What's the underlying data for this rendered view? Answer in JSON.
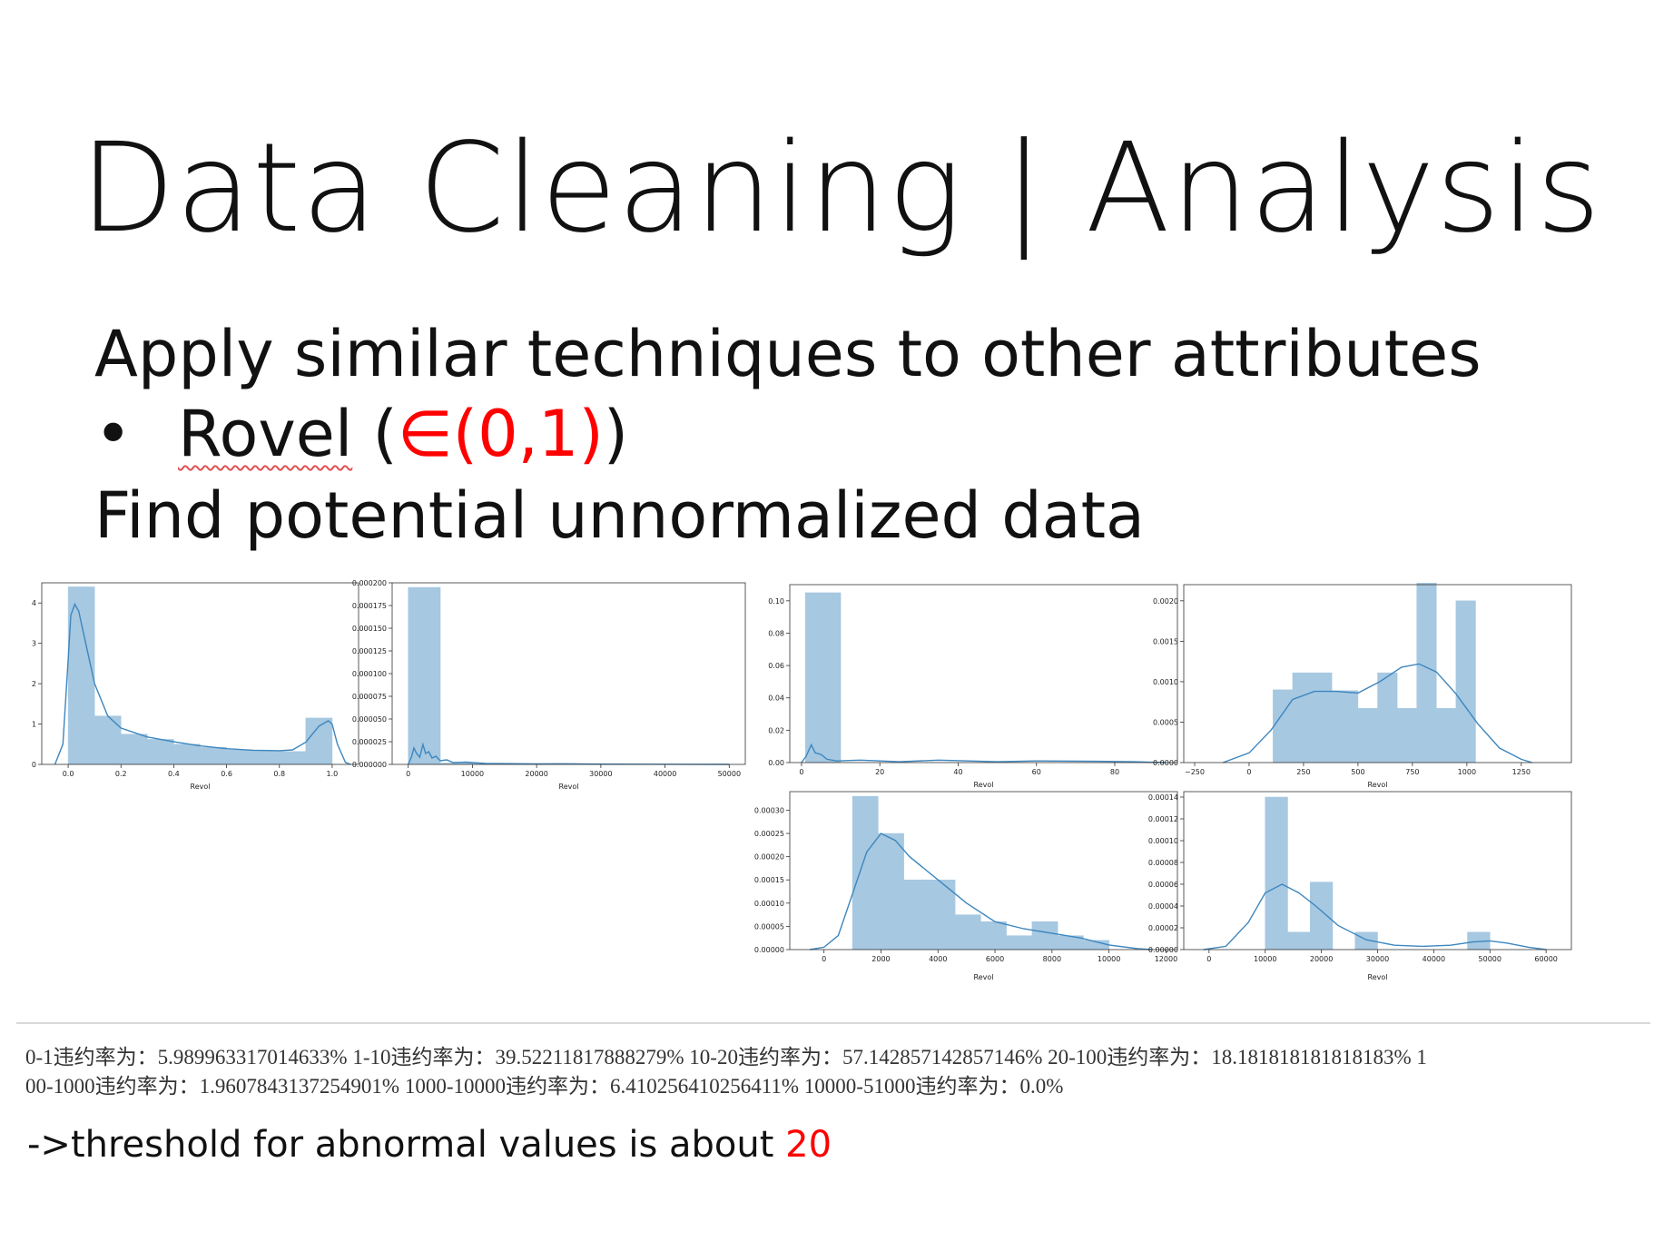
{
  "slide": {
    "title": "Data Cleaning | Analysis",
    "line1": "Apply similar techniques to other attributes",
    "bullet_symbol": "•",
    "bullet_name": "Rovel",
    "bullet_paren_open": " (",
    "bullet_range": "∈(0,1)",
    "bullet_paren_close": ")",
    "line3": "Find potential unnormalized data",
    "stats_line1": "0-1违约率为：5.989963317014633% 1-10违约率为：39.52211817888279% 10-20违约率为：57.142857142857146% 20-100违约率为：18.181818181818183% 1",
    "stats_line2": "00-1000违约率为：1.9607843137254901% 1000-10000违约率为：6.410256410256411% 10000-51000违约率为：0.0%",
    "conclusion_prefix": "->threshold for abnormal values is about ",
    "conclusion_value": "20"
  },
  "colors": {
    "bar_fill": "#a6c8e1",
    "kde_line": "#3d86be",
    "highlight": "#ff0000",
    "axis": "#333333"
  },
  "chart_data": [
    {
      "type": "bar",
      "xlabel": "Revol",
      "xlim": [
        -0.1,
        1.1
      ],
      "ylim": [
        0,
        4.5
      ],
      "xticks": [
        "0.0",
        "0.2",
        "0.4",
        "0.6",
        "0.8",
        "1.0"
      ],
      "yticks": [
        "0",
        "1",
        "2",
        "3",
        "4"
      ],
      "bins": [
        [
          0.0,
          0.1,
          4.4
        ],
        [
          0.1,
          0.2,
          1.2
        ],
        [
          0.2,
          0.3,
          0.75
        ],
        [
          0.3,
          0.4,
          0.62
        ],
        [
          0.4,
          0.5,
          0.5
        ],
        [
          0.5,
          0.6,
          0.42
        ],
        [
          0.6,
          0.7,
          0.36
        ],
        [
          0.7,
          0.8,
          0.33
        ],
        [
          0.8,
          0.9,
          0.32
        ],
        [
          0.9,
          1.0,
          1.15
        ]
      ],
      "kde": [
        [
          -0.05,
          0.0
        ],
        [
          -0.02,
          0.5
        ],
        [
          0.0,
          2.6
        ],
        [
          0.01,
          3.7
        ],
        [
          0.025,
          3.97
        ],
        [
          0.04,
          3.8
        ],
        [
          0.06,
          3.2
        ],
        [
          0.1,
          2.0
        ],
        [
          0.15,
          1.2
        ],
        [
          0.2,
          0.9
        ],
        [
          0.3,
          0.68
        ],
        [
          0.4,
          0.56
        ],
        [
          0.5,
          0.46
        ],
        [
          0.6,
          0.39
        ],
        [
          0.7,
          0.35
        ],
        [
          0.8,
          0.34
        ],
        [
          0.85,
          0.36
        ],
        [
          0.9,
          0.55
        ],
        [
          0.95,
          0.95
        ],
        [
          0.985,
          1.08
        ],
        [
          1.0,
          1.0
        ],
        [
          1.02,
          0.5
        ],
        [
          1.05,
          0.05
        ],
        [
          1.07,
          0.0
        ]
      ]
    },
    {
      "type": "bar",
      "xlabel": "Revol",
      "xlim": [
        -2500,
        52500
      ],
      "ylim": [
        0,
        0.0002
      ],
      "xticks": [
        "0",
        "10000",
        "20000",
        "30000",
        "40000",
        "50000"
      ],
      "yticks": [
        "0.000000",
        "0.000025",
        "0.000050",
        "0.000075",
        "0.000100",
        "0.000125",
        "0.000150",
        "0.000175",
        "0.000200"
      ],
      "bins": [
        [
          0,
          5000,
          0.000195
        ],
        [
          5000,
          10000,
          1.5e-06
        ],
        [
          10000,
          15000,
          8e-07
        ],
        [
          15000,
          20000,
          5e-07
        ],
        [
          20000,
          25000,
          4e-07
        ]
      ],
      "kde": [
        [
          0,
          0.0
        ],
        [
          500,
          8e-06
        ],
        [
          900,
          1.8e-05
        ],
        [
          1300,
          1.2e-05
        ],
        [
          1800,
          8e-06
        ],
        [
          2300,
          2.2e-05
        ],
        [
          2700,
          1.2e-05
        ],
        [
          3200,
          1.4e-05
        ],
        [
          3700,
          7e-06
        ],
        [
          4300,
          9e-06
        ],
        [
          5000,
          4e-06
        ],
        [
          6000,
          5e-06
        ],
        [
          7000,
          2e-06
        ],
        [
          9000,
          2.5e-06
        ],
        [
          12000,
          1e-06
        ],
        [
          16000,
          8e-07
        ],
        [
          20000,
          5e-07
        ],
        [
          24000,
          7e-07
        ],
        [
          30000,
          3e-07
        ],
        [
          50000,
          0.0
        ]
      ]
    },
    {
      "type": "bar",
      "xlabel": "Revol",
      "xlim": [
        -3,
        96
      ],
      "ylim": [
        0,
        0.11
      ],
      "xticks": [
        "0",
        "20",
        "40",
        "60",
        "80"
      ],
      "yticks": [
        "0.00",
        "0.02",
        "0.04",
        "0.06",
        "0.08",
        "0.10"
      ],
      "bins": [
        [
          1,
          10,
          0.105
        ]
      ],
      "kde": [
        [
          0,
          0.0
        ],
        [
          1.2,
          0.004
        ],
        [
          2.5,
          0.011
        ],
        [
          3.5,
          0.006
        ],
        [
          5,
          0.005
        ],
        [
          6.5,
          0.002
        ],
        [
          9,
          0.001
        ],
        [
          15,
          0.0015
        ],
        [
          25,
          0.0005
        ],
        [
          35,
          0.0015
        ],
        [
          50,
          0.0005
        ],
        [
          60,
          0.001
        ],
        [
          75,
          0.0008
        ],
        [
          85,
          0.0005
        ],
        [
          93,
          0.0
        ]
      ]
    },
    {
      "type": "bar",
      "xlabel": "Revol",
      "xlim": [
        -300,
        1480
      ],
      "ylim": [
        0,
        0.0022
      ],
      "xticks": [
        "−250",
        "0",
        "250",
        "500",
        "750",
        "1000",
        "1250"
      ],
      "yticks": [
        "0.0000",
        "0.0005",
        "0.0010",
        "0.0015",
        "0.0020"
      ],
      "bins": [
        [
          110,
          200,
          0.0009
        ],
        [
          200,
          380,
          0.00111
        ],
        [
          380,
          500,
          0.00089
        ],
        [
          500,
          590,
          0.00067
        ],
        [
          590,
          680,
          0.00111
        ],
        [
          680,
          770,
          0.00067
        ],
        [
          770,
          860,
          0.00222
        ],
        [
          860,
          950,
          0.00067
        ],
        [
          950,
          1040,
          0.002
        ]
      ],
      "kde": [
        [
          -120,
          0.0
        ],
        [
          0,
          0.00012
        ],
        [
          100,
          0.0004
        ],
        [
          200,
          0.00078
        ],
        [
          300,
          0.00088
        ],
        [
          400,
          0.00088
        ],
        [
          500,
          0.00086
        ],
        [
          600,
          0.001
        ],
        [
          700,
          0.00118
        ],
        [
          780,
          0.00122
        ],
        [
          860,
          0.00112
        ],
        [
          950,
          0.00085
        ],
        [
          1050,
          0.00048
        ],
        [
          1150,
          0.00018
        ],
        [
          1250,
          4e-05
        ],
        [
          1300,
          0.0
        ]
      ]
    },
    {
      "type": "bar",
      "xlabel": "Revol",
      "xlim": [
        -1200,
        12400
      ],
      "ylim": [
        0,
        0.00034
      ],
      "xticks": [
        "0",
        "2000",
        "4000",
        "6000",
        "8000",
        "10000",
        "12000"
      ],
      "yticks": [
        "0.00000",
        "0.00005",
        "0.00010",
        "0.00015",
        "0.00020",
        "0.00025",
        "0.00030"
      ],
      "bins": [
        [
          1000,
          1900,
          0.00033
        ],
        [
          1900,
          2800,
          0.00025
        ],
        [
          2800,
          3700,
          0.00015
        ],
        [
          3700,
          4600,
          0.00015
        ],
        [
          4600,
          5500,
          7.5e-05
        ],
        [
          5500,
          6400,
          6e-05
        ],
        [
          6400,
          7300,
          3e-05
        ],
        [
          7300,
          8200,
          6e-05
        ],
        [
          8200,
          9100,
          3e-05
        ],
        [
          9100,
          10000,
          2e-05
        ]
      ],
      "kde": [
        [
          -500,
          0.0
        ],
        [
          0,
          5e-06
        ],
        [
          500,
          3e-05
        ],
        [
          1000,
          0.00012
        ],
        [
          1500,
          0.00021
        ],
        [
          2000,
          0.00025
        ],
        [
          2500,
          0.000235
        ],
        [
          3000,
          0.0002
        ],
        [
          4000,
          0.00015
        ],
        [
          5000,
          0.0001
        ],
        [
          6000,
          6e-05
        ],
        [
          7000,
          4.5e-05
        ],
        [
          8000,
          3.5e-05
        ],
        [
          9000,
          2.5e-05
        ],
        [
          10000,
          1e-05
        ],
        [
          11000,
          2e-06
        ],
        [
          11500,
          0.0
        ]
      ]
    },
    {
      "type": "bar",
      "xlabel": "Revol",
      "xlim": [
        -4500,
        64500
      ],
      "ylim": [
        0,
        0.000145
      ],
      "xticks": [
        "0",
        "10000",
        "20000",
        "30000",
        "40000",
        "50000",
        "60000"
      ],
      "yticks": [
        "0.00000",
        "0.00002",
        "0.00004",
        "0.00006",
        "0.00008",
        "0.00010",
        "0.00012",
        "0.00014"
      ],
      "bins": [
        [
          10000,
          14000,
          0.00014
        ],
        [
          14000,
          18000,
          1.6e-05
        ],
        [
          18000,
          22000,
          6.2e-05
        ],
        [
          22000,
          26000,
          0.0
        ],
        [
          26000,
          30000,
          1.6e-05
        ],
        [
          46000,
          50000,
          1.6e-05
        ]
      ],
      "kde": [
        [
          -1000,
          0.0
        ],
        [
          3000,
          3e-06
        ],
        [
          7000,
          2.5e-05
        ],
        [
          10000,
          5.2e-05
        ],
        [
          13000,
          6e-05
        ],
        [
          16000,
          5.2e-05
        ],
        [
          19000,
          4e-05
        ],
        [
          23000,
          2.2e-05
        ],
        [
          28000,
          9e-06
        ],
        [
          33000,
          4e-06
        ],
        [
          38000,
          3e-06
        ],
        [
          43000,
          4e-06
        ],
        [
          47000,
          7e-06
        ],
        [
          50000,
          8e-06
        ],
        [
          53000,
          6e-06
        ],
        [
          57000,
          2e-06
        ],
        [
          60000,
          0.0
        ]
      ]
    }
  ]
}
